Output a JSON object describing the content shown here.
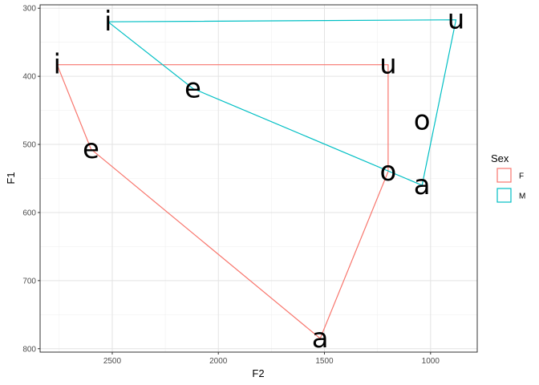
{
  "chart_data": {
    "type": "line",
    "xlabel": "F2",
    "ylabel": "F1",
    "x_reversed": true,
    "y_reversed": true,
    "xlim": [
      2840,
      780
    ],
    "ylim": [
      295,
      805
    ],
    "x_ticks": [
      2500,
      2000,
      1500,
      1000
    ],
    "y_ticks": [
      300,
      400,
      500,
      600,
      700,
      800
    ],
    "grid": true,
    "legend_title": "Sex",
    "legend_position": "right",
    "series": [
      {
        "name": "F",
        "color": "#F8766D",
        "points": [
          {
            "vowel": "i",
            "F2": 2760,
            "F1": 383
          },
          {
            "vowel": "e",
            "F2": 2600,
            "F1": 507
          },
          {
            "vowel": "a",
            "F2": 1520,
            "F1": 785
          },
          {
            "vowel": "o",
            "F2": 1200,
            "F1": 540
          },
          {
            "vowel": "u",
            "F2": 1200,
            "F1": 383
          }
        ],
        "path_order": [
          "i",
          "e",
          "a",
          "o",
          "u",
          "i"
        ]
      },
      {
        "name": "M",
        "color": "#00BFC4",
        "points": [
          {
            "vowel": "i",
            "F2": 2520,
            "F1": 320
          },
          {
            "vowel": "e",
            "F2": 2120,
            "F1": 418
          },
          {
            "vowel": "a",
            "F2": 1040,
            "F1": 560
          },
          {
            "vowel": "o",
            "F2": 1040,
            "F1": 465
          },
          {
            "vowel": "u",
            "F2": 880,
            "F1": 317
          }
        ],
        "path_order": [
          "i",
          "e",
          "a",
          "u",
          "i"
        ]
      }
    ]
  }
}
